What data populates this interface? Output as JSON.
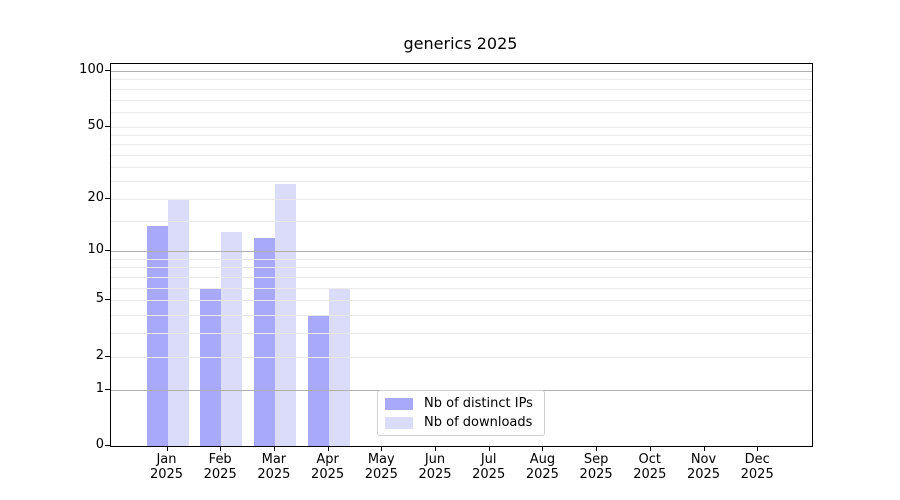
{
  "chart_data": {
    "type": "bar",
    "title": "generics 2025",
    "xlabel": "",
    "ylabel": "",
    "scale": "log1p",
    "ylim": [
      0,
      100
    ],
    "yticks": [
      0,
      1,
      2,
      5,
      10,
      20,
      50,
      100
    ],
    "major_gridlines": [
      1,
      10,
      100
    ],
    "minor_gridlines": [
      2,
      3,
      4,
      5,
      6,
      7,
      8,
      9,
      15,
      20,
      25,
      30,
      35,
      40,
      45,
      50,
      60,
      70,
      80,
      90
    ],
    "grid": true,
    "categories": [
      "Jan",
      "Feb",
      "Mar",
      "Apr",
      "May",
      "Jun",
      "Jul",
      "Aug",
      "Sep",
      "Oct",
      "Nov",
      "Dec"
    ],
    "category_sublabel": "2025",
    "series": [
      {
        "name": "Nb of distinct IPs",
        "color": "#a9a9fa",
        "values": [
          14,
          6,
          12,
          4,
          0,
          0,
          0,
          0,
          0,
          0,
          0,
          0
        ]
      },
      {
        "name": "Nb of downloads",
        "color": "#dbdbfa",
        "values": [
          20,
          13,
          24,
          6,
          0,
          0,
          0,
          0,
          0,
          0,
          0,
          0
        ]
      }
    ],
    "legend_position": "inside-bottom-center",
    "colors": {
      "background": "#ffffff",
      "spine": "#000000",
      "text": "#000000",
      "major_grid": "#b0b0b0",
      "minor_grid": "#e9e9e9"
    }
  }
}
